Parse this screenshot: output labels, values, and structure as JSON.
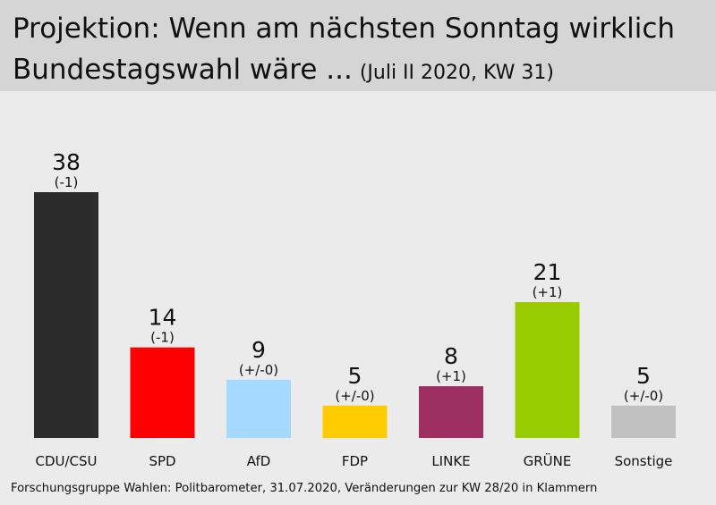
{
  "header": {
    "title_line1": "Projektion: Wenn am nächsten Sonntag wirklich",
    "title_line2": "Bundestagswahl wäre ...",
    "subtitle": "(Juli II 2020, KW 31)"
  },
  "chart_data": {
    "type": "bar",
    "title": "Projektion: Wenn am nächsten Sonntag wirklich Bundestagswahl wäre ...",
    "subtitle": "(Juli II 2020, KW 31)",
    "categories": [
      "CDU/CSU",
      "SPD",
      "AfD",
      "FDP",
      "LINKE",
      "GRÜNE",
      "Sonstige"
    ],
    "values": [
      38,
      14,
      9,
      5,
      8,
      21,
      5
    ],
    "changes": [
      "(-1)",
      "(-1)",
      "(+/-0)",
      "(+/-0)",
      "(+1)",
      "(+1)",
      "(+/-0)"
    ],
    "colors": [
      "#2b2b2b",
      "#ff0000",
      "#a6d9ff",
      "#ffcc00",
      "#9e2f61",
      "#99cc00",
      "#c0c0c0"
    ],
    "ylim": [
      0,
      38
    ],
    "grid": false,
    "legend": "none"
  },
  "footer": {
    "source": "Forschungsgruppe Wahlen: Politbarometer, 31.07.2020, Veränderungen zur KW 28/20 in Klammern"
  }
}
